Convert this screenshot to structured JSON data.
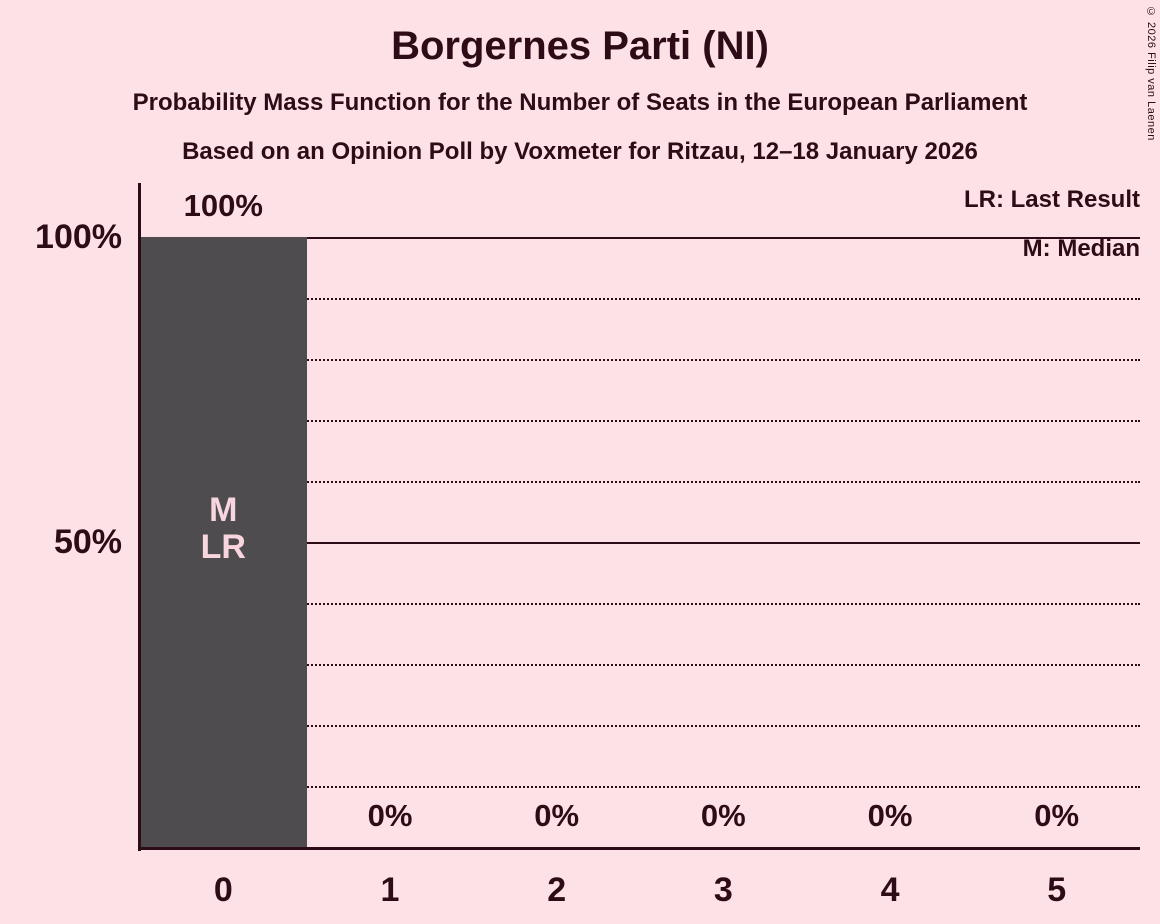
{
  "title": "Borgernes Parti (NI)",
  "subtitle1": "Probability Mass Function for the Number of Seats in the European Parliament",
  "subtitle2": "Based on an Opinion Poll by Voxmeter for Ritzau, 12–18 January 2026",
  "copyright": "© 2026 Filip van Laenen",
  "legend": {
    "lr_label": "LR: Last Result",
    "m_label": "M: Median"
  },
  "colors": {
    "background": "#FCE1E7",
    "text": "#2E0C17",
    "bar": "#4E4C4E",
    "bar_annotation": "#F9D6DF"
  },
  "chart_data": {
    "type": "bar",
    "title": "Borgernes Parti (NI)",
    "categories": [
      "0",
      "1",
      "2",
      "3",
      "4",
      "5"
    ],
    "values": [
      100,
      0,
      0,
      0,
      0,
      0
    ],
    "bar_labels": [
      "100%",
      "0%",
      "0%",
      "0%",
      "0%",
      "0%"
    ],
    "annotations": [
      {
        "category_index": 0,
        "lines": [
          "M",
          "LR"
        ]
      }
    ],
    "y_ticks": [
      {
        "value": 100,
        "label": "100%"
      },
      {
        "value": 50,
        "label": "50%"
      }
    ],
    "solid_gridlines": [
      100,
      50
    ],
    "dotted_gridlines": [
      90,
      80,
      70,
      60,
      40,
      30,
      20,
      10
    ],
    "ylim": [
      0,
      100
    ],
    "xlabel": "",
    "ylabel": "",
    "legend_position": "top-right",
    "grid": "horizontal"
  }
}
